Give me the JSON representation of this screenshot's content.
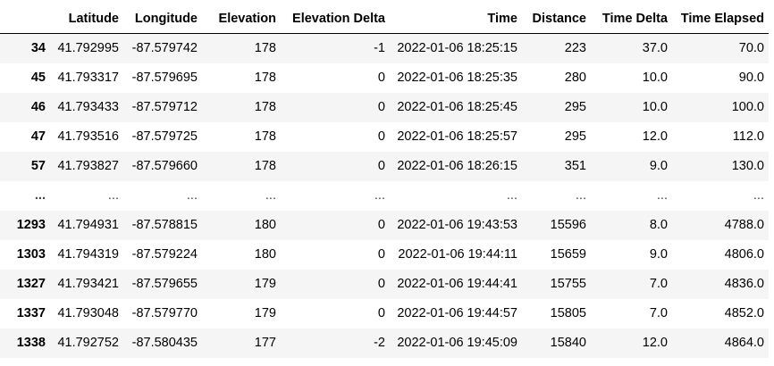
{
  "table": {
    "index_header": "",
    "columns": [
      "Latitude",
      "Longitude",
      "Elevation",
      "Elevation Delta",
      "Time",
      "Distance",
      "Time Delta",
      "Time Elapsed"
    ],
    "rows": [
      {
        "index": "34",
        "cells": [
          "41.792995",
          "-87.579742",
          "178",
          "-1",
          "2022-01-06 18:25:15",
          "223",
          "37.0",
          "70.0"
        ]
      },
      {
        "index": "45",
        "cells": [
          "41.793317",
          "-87.579695",
          "178",
          "0",
          "2022-01-06 18:25:35",
          "280",
          "10.0",
          "90.0"
        ]
      },
      {
        "index": "46",
        "cells": [
          "41.793433",
          "-87.579712",
          "178",
          "0",
          "2022-01-06 18:25:45",
          "295",
          "10.0",
          "100.0"
        ]
      },
      {
        "index": "47",
        "cells": [
          "41.793516",
          "-87.579725",
          "178",
          "0",
          "2022-01-06 18:25:57",
          "295",
          "12.0",
          "112.0"
        ]
      },
      {
        "index": "57",
        "cells": [
          "41.793827",
          "-87.579660",
          "178",
          "0",
          "2022-01-06 18:26:15",
          "351",
          "9.0",
          "130.0"
        ]
      },
      {
        "index": "...",
        "cells": [
          "...",
          "...",
          "...",
          "...",
          "...",
          "...",
          "...",
          "..."
        ]
      },
      {
        "index": "1293",
        "cells": [
          "41.794931",
          "-87.578815",
          "180",
          "0",
          "2022-01-06 19:43:53",
          "15596",
          "8.0",
          "4788.0"
        ]
      },
      {
        "index": "1303",
        "cells": [
          "41.794319",
          "-87.579224",
          "180",
          "0",
          "2022-01-06 19:44:11",
          "15659",
          "9.0",
          "4806.0"
        ]
      },
      {
        "index": "1327",
        "cells": [
          "41.793421",
          "-87.579655",
          "179",
          "0",
          "2022-01-06 19:44:41",
          "15755",
          "7.0",
          "4836.0"
        ]
      },
      {
        "index": "1337",
        "cells": [
          "41.793048",
          "-87.579770",
          "179",
          "0",
          "2022-01-06 19:44:57",
          "15805",
          "7.0",
          "4852.0"
        ]
      },
      {
        "index": "1338",
        "cells": [
          "41.792752",
          "-87.580435",
          "177",
          "-2",
          "2022-01-06 19:45:09",
          "15840",
          "12.0",
          "4864.0"
        ]
      }
    ]
  }
}
